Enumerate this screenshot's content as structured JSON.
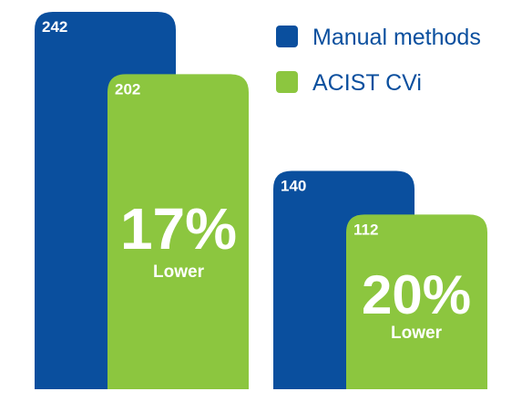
{
  "chart_data": {
    "type": "bar",
    "groups": [
      {
        "values": [
          242,
          202
        ],
        "percent_text": "17%",
        "percent_subtext": "Lower"
      },
      {
        "values": [
          140,
          112
        ],
        "percent_text": "20%",
        "percent_subtext": "Lower"
      }
    ],
    "series": [
      {
        "name": "Manual methods",
        "color": "#0a4f9e"
      },
      {
        "name": "ACIST CVi",
        "color": "#8cc63f"
      }
    ],
    "ylim": [
      0,
      242
    ],
    "grid": false,
    "legend_position": "top-right",
    "bar_value_labels": true
  }
}
